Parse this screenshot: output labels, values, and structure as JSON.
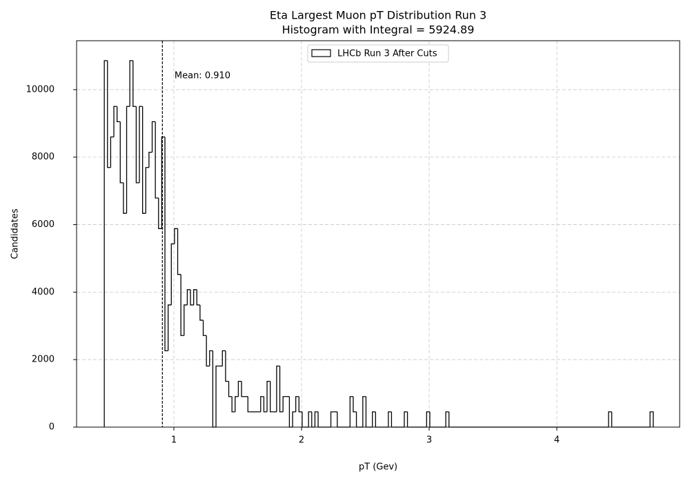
{
  "chart_data": {
    "type": "histogram",
    "title": "Eta Largest Muon pT Distribution Run 3",
    "subtitle": "Histogram with Integral = 5924.89",
    "x_label": "pT (Gev)",
    "y_label": "Candidates",
    "annotation": "Mean: 0.910",
    "mean": 0.91,
    "bins": [
      0.455,
      0.48,
      0.505,
      0.53,
      0.555,
      0.58,
      0.605,
      0.63,
      0.655,
      0.68,
      0.705,
      0.73,
      0.755,
      0.78,
      0.805,
      0.83,
      0.855,
      0.88,
      0.905,
      0.93,
      0.955,
      0.98,
      1.005,
      1.03,
      1.055,
      1.08,
      1.105,
      1.13,
      1.155,
      1.18,
      1.205,
      1.23,
      1.255,
      1.28,
      1.305,
      1.33,
      1.355,
      1.38,
      1.405,
      1.43,
      1.455,
      1.48,
      1.505,
      1.53,
      1.555,
      1.58,
      1.605,
      1.63,
      1.655,
      1.68,
      1.705,
      1.73,
      1.755,
      1.78,
      1.805,
      1.83,
      1.855,
      1.88,
      1.905,
      1.93,
      1.955,
      1.98,
      2.005,
      2.03,
      2.055,
      2.08,
      2.105,
      2.13,
      2.155,
      2.18,
      2.205,
      2.23,
      2.255,
      2.28,
      2.305,
      2.33,
      2.355,
      2.38,
      2.405,
      2.43,
      2.455,
      2.48,
      2.505,
      2.53,
      2.555,
      2.58,
      2.605,
      2.63,
      2.655,
      2.68,
      2.705,
      2.73,
      2.755,
      2.78,
      2.805,
      2.83,
      2.855,
      2.88,
      2.905,
      2.93,
      2.955,
      2.98,
      3.005,
      3.03,
      3.055,
      3.08,
      3.105,
      3.13,
      3.155,
      3.18,
      3.205,
      3.23,
      3.255,
      3.28,
      3.305,
      3.33,
      3.355,
      3.38,
      3.405,
      3.43,
      3.455,
      3.48,
      3.505,
      3.53,
      3.555,
      3.58,
      3.605,
      3.63,
      3.655,
      3.68,
      3.705,
      3.73,
      3.755,
      3.78,
      3.805,
      3.83,
      3.855,
      3.88,
      3.905,
      3.93,
      3.955,
      3.98,
      4.005,
      4.03,
      4.055,
      4.08,
      4.105,
      4.13,
      4.155,
      4.18,
      4.205,
      4.23,
      4.255,
      4.28,
      4.305,
      4.33,
      4.355,
      4.38,
      4.405,
      4.43,
      4.455,
      4.48,
      4.505,
      4.53,
      4.555,
      4.58,
      4.605,
      4.63,
      4.655,
      4.68,
      4.705,
      4.73,
      4.755
    ],
    "series": [
      {
        "name": "LHCb Run 3 After Cuts",
        "color": "#000000",
        "values": [
          10860,
          7692.5,
          8597.5,
          9502.5,
          9050,
          7240,
          6335,
          9502.5,
          10860,
          9502.5,
          7240,
          9502.5,
          6335,
          7692.5,
          8145,
          9050,
          6787.5,
          5882.5,
          8597.5,
          2262.5,
          3620,
          5430,
          5882.5,
          4525,
          2715,
          3620,
          4072.5,
          3620,
          4072.5,
          3620,
          3167.5,
          2715,
          1810,
          2262.5,
          0,
          1810,
          1810,
          2262.5,
          1357.5,
          905,
          452.5,
          905,
          1357.5,
          905,
          905,
          452.5,
          452.5,
          452.5,
          452.5,
          905,
          452.5,
          1357.5,
          452.5,
          452.5,
          1810,
          452.5,
          905,
          905,
          0,
          452.5,
          905,
          452.5,
          0,
          0,
          452.5,
          0,
          452.5,
          0,
          0,
          0,
          0,
          452.5,
          452.5,
          0,
          0,
          0,
          0,
          905,
          452.5,
          0,
          0,
          905,
          0,
          0,
          452.5,
          0,
          0,
          0,
          0,
          452.5,
          0,
          0,
          0,
          0,
          452.5,
          0,
          0,
          0,
          0,
          0,
          0,
          452.5,
          0,
          0,
          0,
          0,
          0,
          452.5,
          0,
          0,
          0,
          0,
          0,
          0,
          0,
          0,
          0,
          0,
          0,
          0,
          0,
          0,
          0,
          0,
          0,
          0,
          0,
          0,
          0,
          0,
          0,
          0,
          0,
          0,
          0,
          0,
          0,
          0,
          0,
          0,
          0,
          0,
          0,
          0,
          0,
          0,
          0,
          0,
          0,
          0,
          0,
          0,
          0,
          0,
          0,
          0,
          0,
          0,
          452.5,
          0,
          0,
          0,
          0,
          0,
          0,
          0,
          0,
          0,
          0,
          0,
          0,
          452.5
        ]
      }
    ],
    "xlim": [
      0.238,
      4.962
    ],
    "xticks": [
      1,
      2,
      3,
      4
    ],
    "ylim": [
      0,
      11450
    ],
    "yticks": [
      0,
      2000,
      4000,
      6000,
      8000,
      10000
    ],
    "grid": true,
    "legend": "upper center"
  }
}
